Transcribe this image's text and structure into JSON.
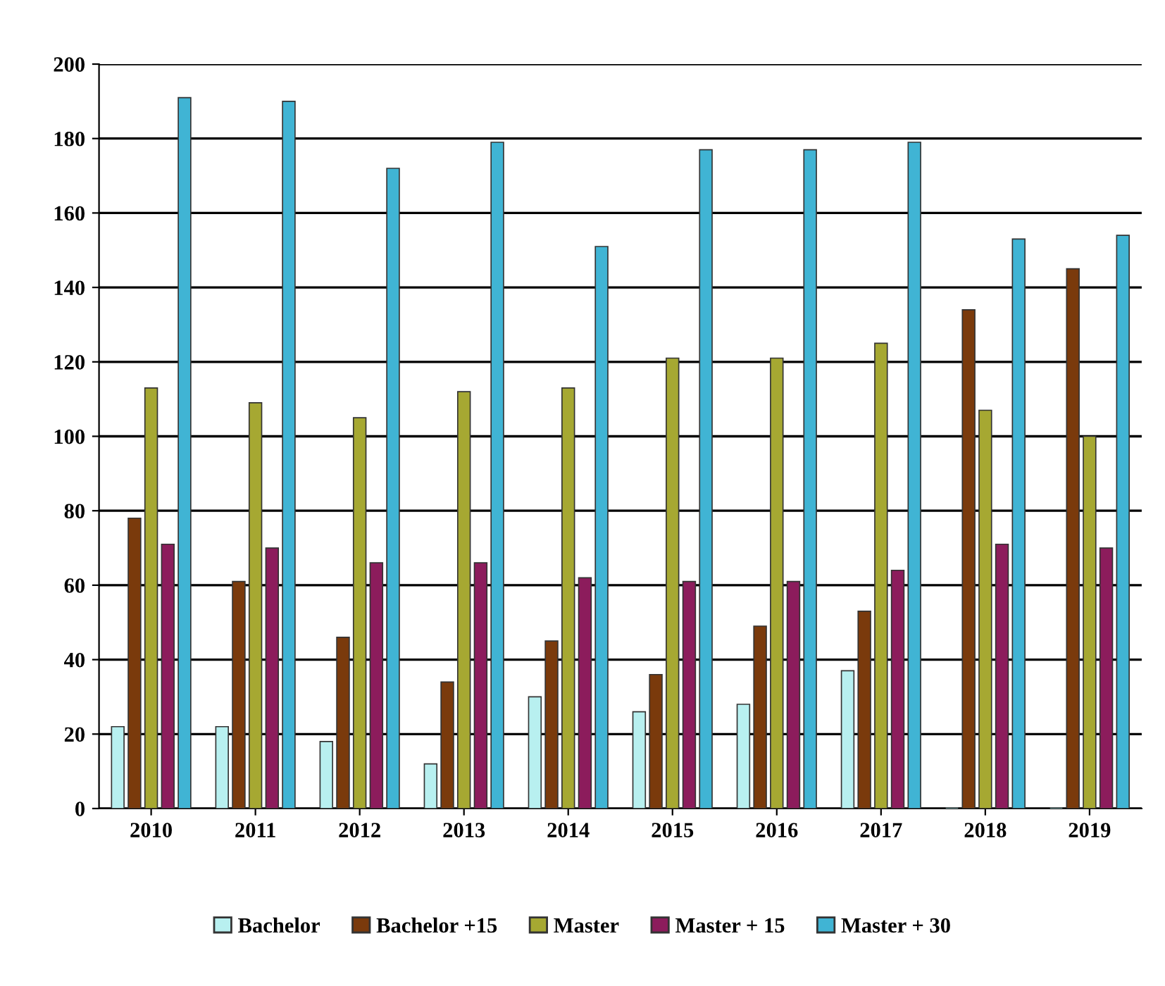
{
  "chart_data": {
    "type": "bar",
    "categories": [
      "2010",
      "2011",
      "2012",
      "2013",
      "2014",
      "2015",
      "2016",
      "2017",
      "2018",
      "2019"
    ],
    "series": [
      {
        "name": "Bachelor",
        "color": "#b8f0f0",
        "values": [
          22,
          22,
          18,
          12,
          30,
          26,
          28,
          37,
          0,
          0
        ]
      },
      {
        "name": "Bachelor +15",
        "color": "#7a3a0c",
        "values": [
          78,
          61,
          46,
          34,
          45,
          36,
          49,
          53,
          134,
          145
        ]
      },
      {
        "name": "Master",
        "color": "#a6a832",
        "values": [
          113,
          109,
          105,
          112,
          113,
          121,
          121,
          125,
          107,
          100
        ]
      },
      {
        "name": "Master + 15",
        "color": "#8c1c5c",
        "values": [
          71,
          70,
          66,
          66,
          62,
          61,
          61,
          64,
          71,
          70
        ]
      },
      {
        "name": "Master + 30",
        "color": "#40b4d4",
        "values": [
          191,
          190,
          172,
          179,
          151,
          177,
          177,
          179,
          153,
          154
        ]
      }
    ],
    "ylim": [
      0,
      200
    ],
    "yticks": [
      0,
      20,
      40,
      60,
      80,
      100,
      120,
      140,
      160,
      180,
      200
    ],
    "grid": "y",
    "legend": "bottom"
  }
}
